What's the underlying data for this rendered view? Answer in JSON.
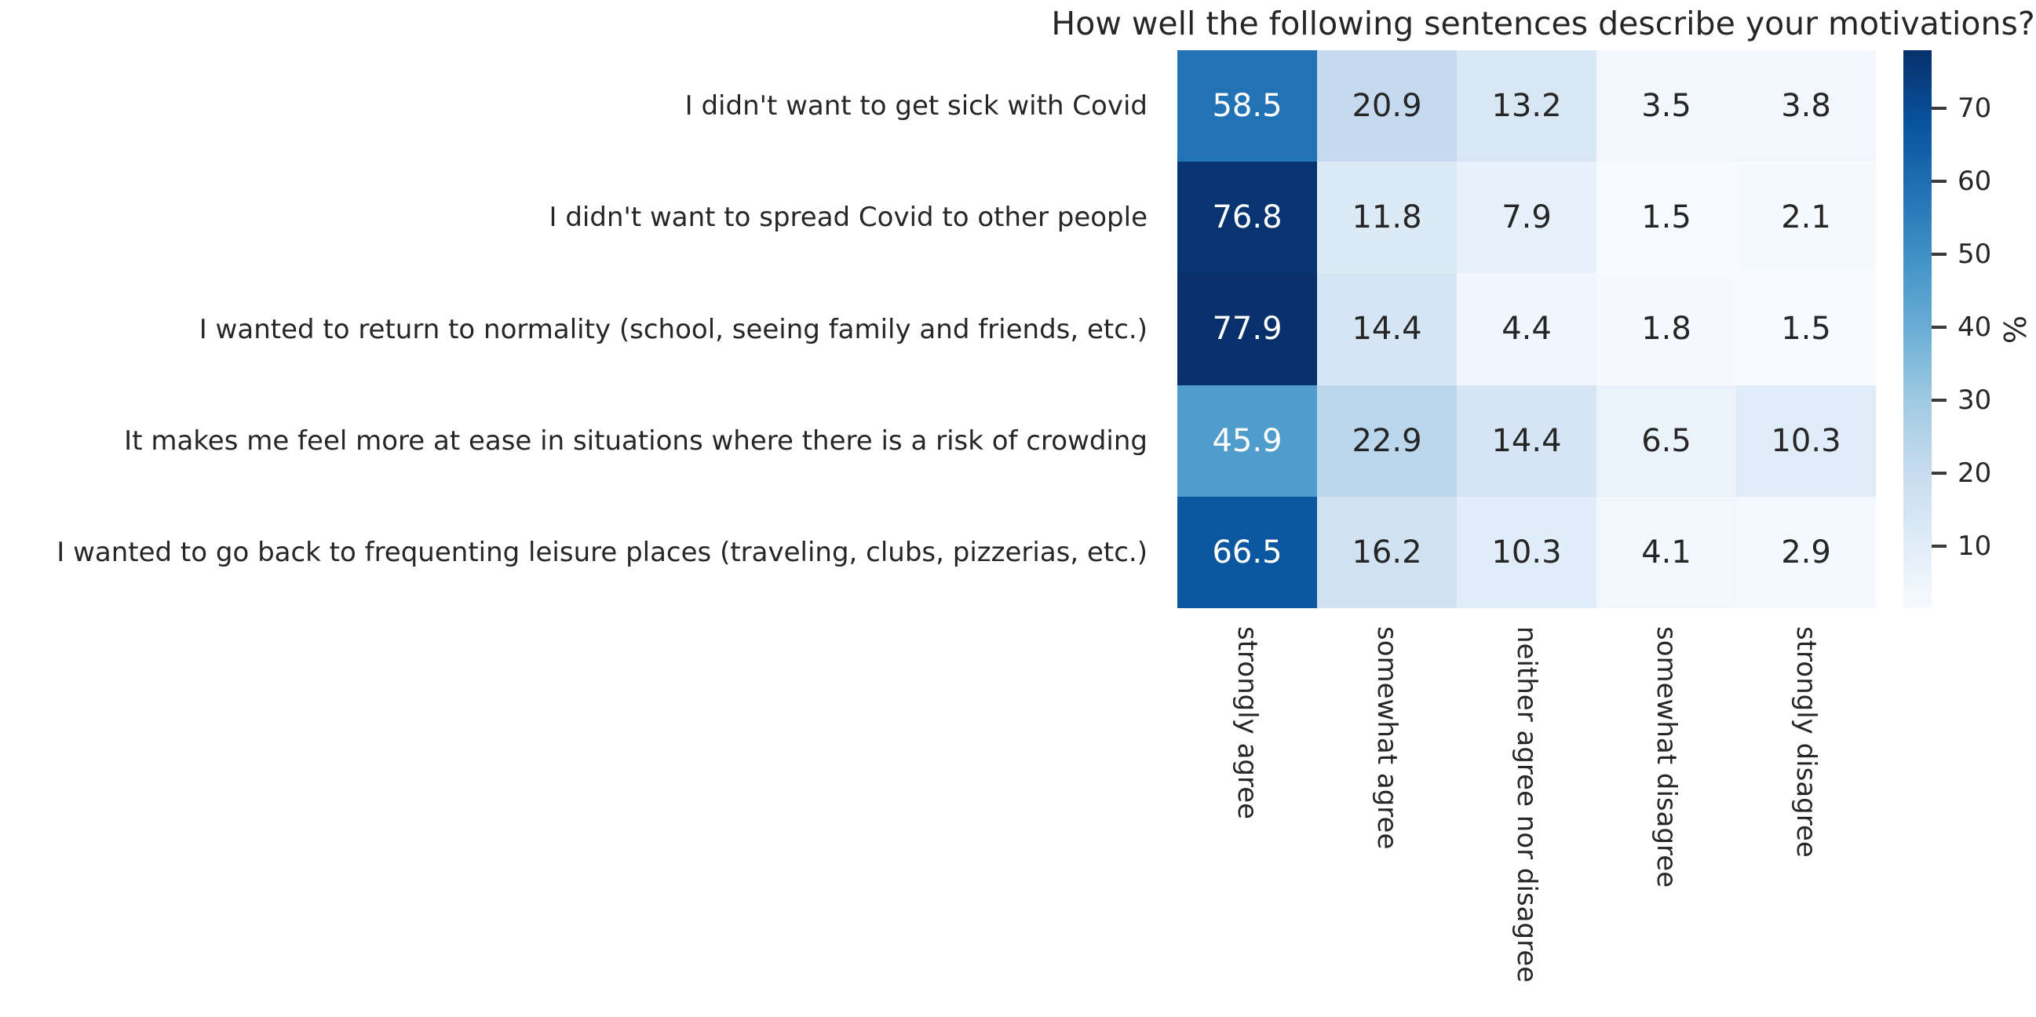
{
  "title": "How well the following sentences describe your motivations?",
  "chart_data": {
    "type": "heatmap",
    "rows": [
      "I didn't want to get sick with Covid",
      "I didn't want to spread Covid to other people",
      "I wanted to return to normality (school, seeing family and friends, etc.)",
      "It makes me feel more at ease in situations where there is a risk of crowding",
      "I wanted to go back to frequenting leisure places (traveling, clubs, pizzerias, etc.)"
    ],
    "columns": [
      "strongly agree",
      "somewhat agree",
      "neither agree nor disagree",
      "somewhat disagree",
      "strongly disagree"
    ],
    "values": [
      [
        58.5,
        20.9,
        13.2,
        3.5,
        3.8
      ],
      [
        76.8,
        11.8,
        7.9,
        1.5,
        2.1
      ],
      [
        77.9,
        14.4,
        4.4,
        1.8,
        1.5
      ],
      [
        45.9,
        22.9,
        14.4,
        6.5,
        10.3
      ],
      [
        66.5,
        16.2,
        10.3,
        4.1,
        2.9
      ]
    ],
    "colormap": "Blues",
    "vmin": 1.5,
    "vmax": 77.9,
    "colorbar": {
      "label": "%",
      "ticks": [
        70,
        60,
        50,
        40,
        30,
        20,
        10
      ]
    },
    "colors": {
      "cell_text_dark": "#262626",
      "cell_text_light": "#ffffff",
      "colormap_min": "#f7fbff",
      "colormap_max": "#08306b",
      "background": "#ffffff"
    },
    "legend_position": "right-colorbar",
    "grid": false
  }
}
